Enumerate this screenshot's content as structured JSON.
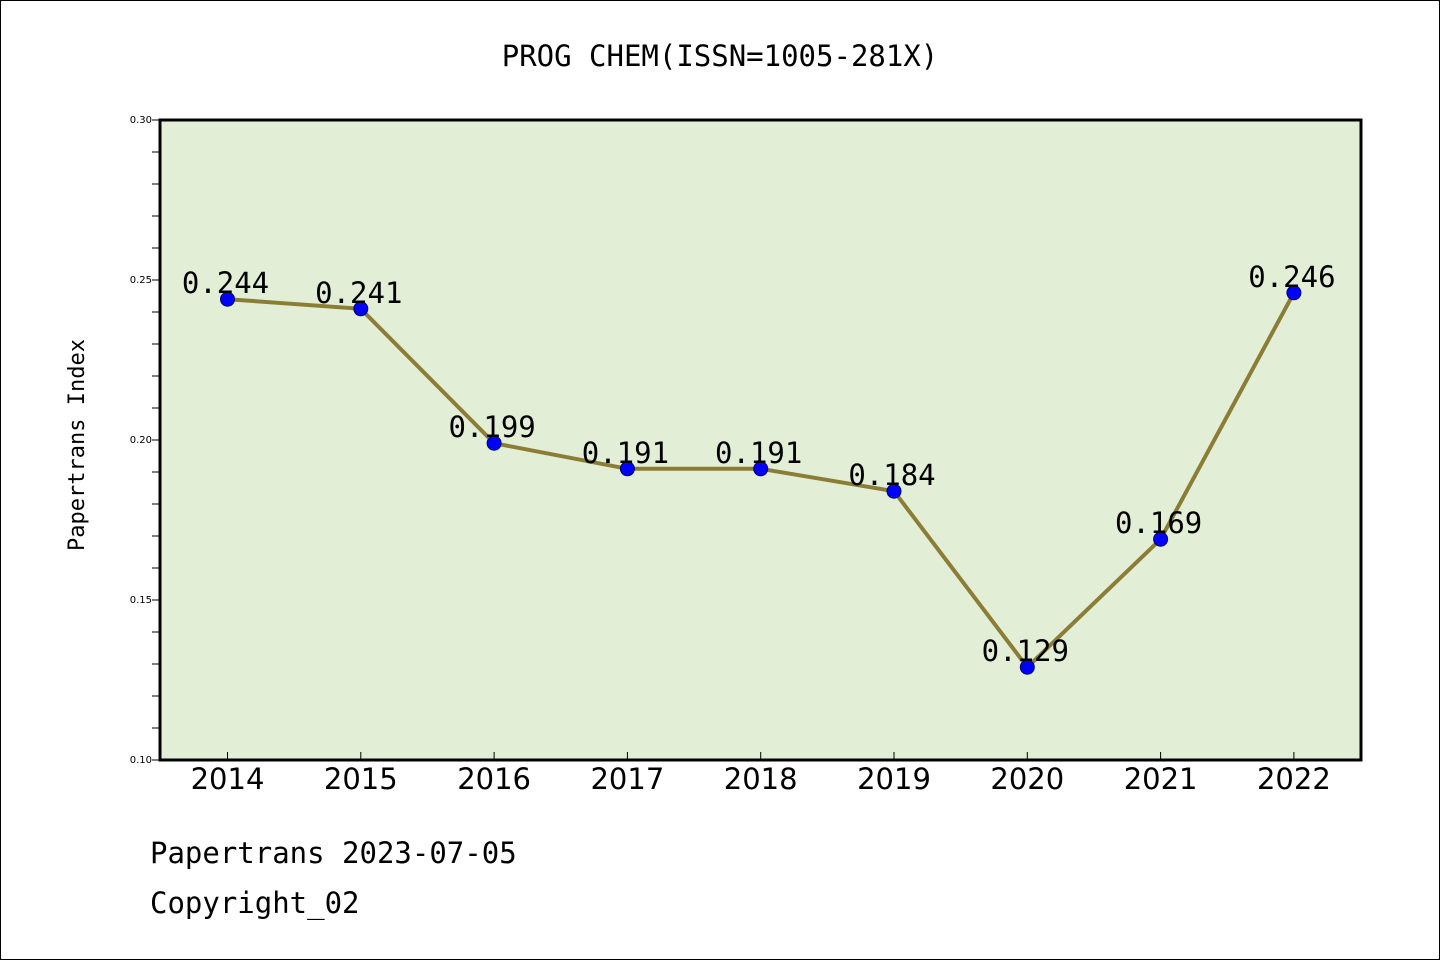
{
  "chart_data": {
    "type": "line",
    "title": "PROG CHEM(ISSN=1005-281X)",
    "xlabel": "",
    "ylabel": "Papertrans Index",
    "categories": [
      "2014",
      "2015",
      "2016",
      "2017",
      "2018",
      "2019",
      "2020",
      "2021",
      "2022"
    ],
    "series": [
      {
        "values": [
          0.244,
          0.241,
          0.199,
          0.191,
          0.191,
          0.184,
          0.129,
          0.169,
          0.246
        ]
      }
    ],
    "data_labels": [
      "0.244",
      "0.241",
      "0.199",
      "0.191",
      "0.191",
      "0.184",
      "0.129",
      "0.169",
      "0.246"
    ],
    "ylim": [
      0.1,
      0.3
    ],
    "yticks": [
      "0.10",
      "0.15",
      "0.20",
      "0.25",
      "0.30"
    ],
    "grid": false,
    "legend": "none",
    "colors": {
      "line": "#8b7d35",
      "marker": "#0000ff",
      "plot_bg": "#e2efd6",
      "axes": "#000000"
    }
  },
  "footer": {
    "line1": "Papertrans 2023-07-05",
    "line2": "Copyright_02"
  }
}
